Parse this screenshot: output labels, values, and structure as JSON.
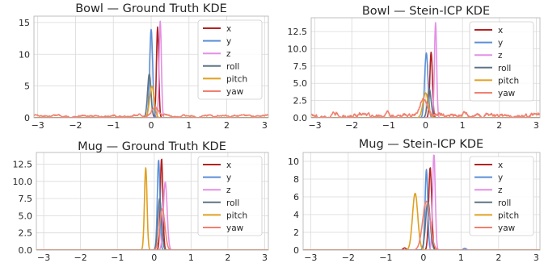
{
  "chart_data": [
    {
      "type": "line",
      "title": "Bowl — Ground Truth KDE",
      "xlim": [
        -3.1,
        3.1
      ],
      "ylim": [
        0,
        16
      ],
      "xticks": [
        -3,
        -2,
        -1,
        0,
        1,
        2,
        3
      ],
      "yticks": [
        0,
        5,
        10,
        15
      ],
      "xtick_labels": [
        "−3",
        "−2",
        "−1",
        "0",
        "1",
        "2",
        "3"
      ],
      "ytick_labels": [
        "0",
        "5",
        "10",
        "15"
      ],
      "grid": true,
      "legend": "top-right",
      "series": [
        {
          "name": "x",
          "color": "#b22222",
          "peaks": [
            {
              "mu": 0.17,
              "sigma": 0.03,
              "height": 14.3
            }
          ]
        },
        {
          "name": "y",
          "color": "#5b8fd6",
          "peaks": [
            {
              "mu": 0.0,
              "sigma": 0.04,
              "height": 13.9
            }
          ]
        },
        {
          "name": "z",
          "color": "#e48fe4",
          "peaks": [
            {
              "mu": 0.24,
              "sigma": 0.03,
              "height": 15.2
            }
          ]
        },
        {
          "name": "roll",
          "color": "#5f7486",
          "peaks": [
            {
              "mu": -0.05,
              "sigma": 0.045,
              "height": 6.9
            }
          ]
        },
        {
          "name": "pitch",
          "color": "#e0a020",
          "peaks": [
            {
              "mu": 0.02,
              "sigma": 0.06,
              "height": 5.0
            }
          ]
        },
        {
          "name": "yaw",
          "color": "#f08070",
          "peaks": [
            {
              "mu": 0.1,
              "sigma": 0.08,
              "height": 1.5
            }
          ],
          "baseline": 0.3,
          "noise": 0.18
        }
      ]
    },
    {
      "type": "line",
      "title": "Bowl — Stein-ICP KDE",
      "xlim": [
        -3.1,
        3.1
      ],
      "ylim": [
        0,
        14.5
      ],
      "xticks": [
        -3,
        -2,
        -1,
        0,
        1,
        2,
        3
      ],
      "yticks": [
        0,
        2.5,
        5,
        7.5,
        10,
        12.5
      ],
      "xtick_labels": [
        "−3",
        "−2",
        "−1",
        "0",
        "1",
        "2",
        "3"
      ],
      "ytick_labels": [
        "0.0",
        "2.5",
        "5.0",
        "7.5",
        "10.0",
        "12.5"
      ],
      "grid": true,
      "legend": "top-right",
      "series": [
        {
          "name": "x",
          "color": "#b22222",
          "peaks": [
            {
              "mu": 0.15,
              "sigma": 0.035,
              "height": 9.5
            }
          ]
        },
        {
          "name": "y",
          "color": "#5b8fd6",
          "peaks": [
            {
              "mu": 0.02,
              "sigma": 0.045,
              "height": 9.4
            }
          ]
        },
        {
          "name": "z",
          "color": "#e48fe4",
          "peaks": [
            {
              "mu": 0.27,
              "sigma": 0.03,
              "height": 13.8
            }
          ]
        },
        {
          "name": "roll",
          "color": "#5f7486",
          "peaks": [
            {
              "mu": 0.1,
              "sigma": 0.05,
              "height": 4.2
            }
          ]
        },
        {
          "name": "pitch",
          "color": "#e0a020",
          "peaks": [
            {
              "mu": 0.0,
              "sigma": 0.07,
              "height": 3.6
            }
          ]
        },
        {
          "name": "yaw",
          "color": "#f08070",
          "peaks": [
            {
              "mu": -0.05,
              "sigma": 0.1,
              "height": 2.8
            }
          ],
          "baseline": 0.3,
          "noise": 0.35
        }
      ]
    },
    {
      "type": "line",
      "title": "Mug — Ground Truth KDE",
      "xlim": [
        -3.2,
        3.1
      ],
      "ylim": [
        0,
        14.2
      ],
      "xticks": [
        -3,
        -2,
        -1,
        0,
        1,
        2,
        3
      ],
      "yticks": [
        0,
        2.5,
        5,
        7.5,
        10,
        12.5
      ],
      "xtick_labels": [
        "−3",
        "−2",
        "−1",
        "0",
        "1",
        "2",
        "3"
      ],
      "ytick_labels": [
        "0.0",
        "2.5",
        "5.0",
        "7.5",
        "10.0",
        "12.5"
      ],
      "grid": true,
      "legend": "top-right",
      "series": [
        {
          "name": "x",
          "color": "#b22222",
          "peaks": [
            {
              "mu": 0.2,
              "sigma": 0.035,
              "height": 13.3
            }
          ]
        },
        {
          "name": "y",
          "color": "#5b8fd6",
          "peaks": [
            {
              "mu": 0.12,
              "sigma": 0.035,
              "height": 13.1
            }
          ]
        },
        {
          "name": "z",
          "color": "#e48fe4",
          "peaks": [
            {
              "mu": 0.3,
              "sigma": 0.05,
              "height": 9.9
            }
          ]
        },
        {
          "name": "roll",
          "color": "#5f7486",
          "peaks": [
            {
              "mu": 0.15,
              "sigma": 0.05,
              "height": 7.5
            }
          ]
        },
        {
          "name": "pitch",
          "color": "#e0a020",
          "peaks": [
            {
              "mu": -0.23,
              "sigma": 0.035,
              "height": 12.0
            }
          ]
        },
        {
          "name": "yaw",
          "color": "#f08070",
          "peaks": [
            {
              "mu": 0.22,
              "sigma": 0.07,
              "height": 6.0
            }
          ]
        }
      ]
    },
    {
      "type": "line",
      "title": "Mug — Stein-ICP KDE",
      "xlim": [
        -3.2,
        3.1
      ],
      "ylim": [
        0,
        11
      ],
      "xticks": [
        -3,
        -2,
        -1,
        0,
        1,
        2,
        3
      ],
      "yticks": [
        0,
        2,
        4,
        6,
        8,
        10
      ],
      "xtick_labels": [
        "−3",
        "−2",
        "−1",
        "0",
        "1",
        "2",
        "3"
      ],
      "ytick_labels": [
        "0",
        "2",
        "4",
        "6",
        "8",
        "10"
      ],
      "grid": true,
      "legend": "top-right",
      "series": [
        {
          "name": "x",
          "color": "#b22222",
          "peaks": [
            {
              "mu": 0.18,
              "sigma": 0.04,
              "height": 9.3
            },
            {
              "mu": -0.5,
              "sigma": 0.04,
              "height": 0.25
            }
          ]
        },
        {
          "name": "y",
          "color": "#5b8fd6",
          "peaks": [
            {
              "mu": 0.08,
              "sigma": 0.035,
              "height": 9.1
            },
            {
              "mu": 1.1,
              "sigma": 0.04,
              "height": 0.2
            }
          ]
        },
        {
          "name": "z",
          "color": "#e48fe4",
          "peaks": [
            {
              "mu": 0.28,
              "sigma": 0.035,
              "height": 10.8
            }
          ]
        },
        {
          "name": "roll",
          "color": "#5f7486",
          "peaks": [
            {
              "mu": 0.12,
              "sigma": 0.06,
              "height": 5.5
            }
          ]
        },
        {
          "name": "pitch",
          "color": "#e0a020",
          "peaks": [
            {
              "mu": -0.22,
              "sigma": 0.07,
              "height": 6.4
            }
          ]
        },
        {
          "name": "yaw",
          "color": "#f08070",
          "peaks": [
            {
              "mu": 0.08,
              "sigma": 0.1,
              "height": 5.5
            }
          ]
        }
      ]
    }
  ]
}
